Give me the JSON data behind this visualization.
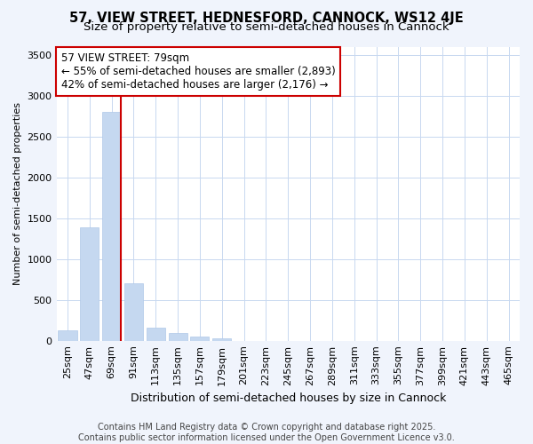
{
  "title": "57, VIEW STREET, HEDNESFORD, CANNOCK, WS12 4JE",
  "subtitle": "Size of property relative to semi-detached houses in Cannock",
  "xlabel": "Distribution of semi-detached houses by size in Cannock",
  "ylabel": "Number of semi-detached properties",
  "categories": [
    "25sqm",
    "47sqm",
    "69sqm",
    "91sqm",
    "113sqm",
    "135sqm",
    "157sqm",
    "179sqm",
    "201sqm",
    "223sqm",
    "245sqm",
    "267sqm",
    "289sqm",
    "311sqm",
    "333sqm",
    "355sqm",
    "377sqm",
    "399sqm",
    "421sqm",
    "443sqm",
    "465sqm"
  ],
  "values": [
    130,
    1390,
    2800,
    700,
    160,
    90,
    50,
    30,
    0,
    0,
    0,
    0,
    0,
    0,
    0,
    0,
    0,
    0,
    0,
    0,
    0
  ],
  "bar_color": "#c5d8f0",
  "bar_edge_color": "#b0c8e8",
  "vline_color": "#cc0000",
  "vline_x_index": 2,
  "annotation_text": "57 VIEW STREET: 79sqm\n← 55% of semi-detached houses are smaller (2,893)\n42% of semi-detached houses are larger (2,176) →",
  "annotation_box_facecolor": "#ffffff",
  "annotation_box_edgecolor": "#cc0000",
  "ylim": [
    0,
    3600
  ],
  "yticks": [
    0,
    500,
    1000,
    1500,
    2000,
    2500,
    3000,
    3500
  ],
  "fig_bg_color": "#f0f4fc",
  "plot_bg_color": "#ffffff",
  "grid_color": "#c8d8f0",
  "footer": "Contains HM Land Registry data © Crown copyright and database right 2025.\nContains public sector information licensed under the Open Government Licence v3.0.",
  "title_fontsize": 10.5,
  "subtitle_fontsize": 9.5,
  "xlabel_fontsize": 9,
  "ylabel_fontsize": 8,
  "tick_fontsize": 8,
  "annotation_fontsize": 8.5,
  "footer_fontsize": 7
}
